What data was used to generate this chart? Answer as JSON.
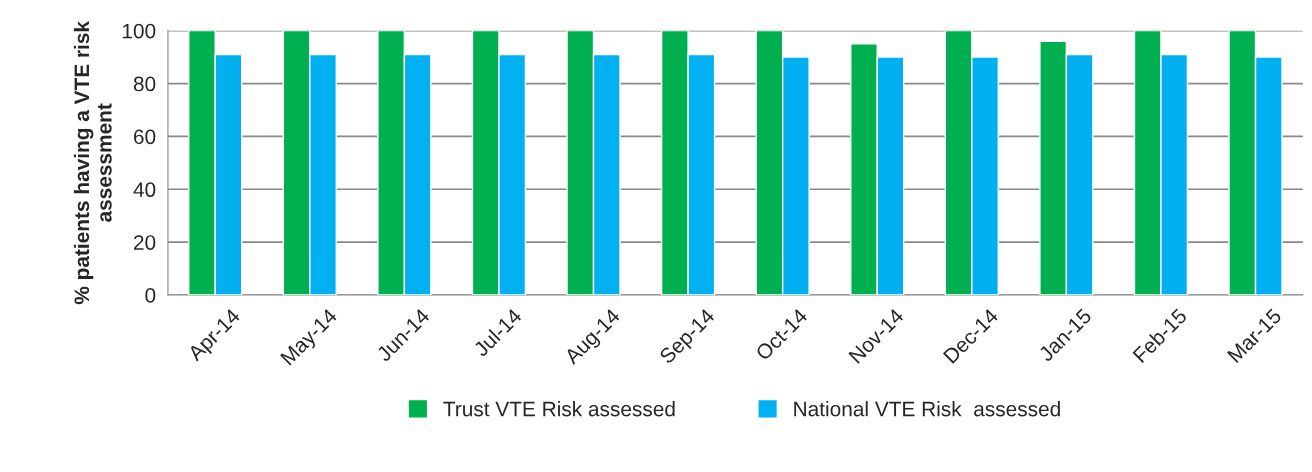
{
  "chart_data": {
    "type": "bar",
    "ylabel": "% patients having a VTE risk\nassessment",
    "categories": [
      "Apr-14",
      "May-14",
      "Jun-14",
      "Jul-14",
      "Aug-14",
      "Sep-14",
      "Oct-14",
      "Nov-14",
      "Dec-14",
      "Jan-15",
      "Feb-15",
      "Mar-15"
    ],
    "series": [
      {
        "name": "Trust VTE Risk assessed",
        "color": "#00b050",
        "values": [
          100,
          100,
          100,
          100,
          100,
          100,
          100,
          95,
          100,
          96,
          100,
          100
        ]
      },
      {
        "name": "National VTE Risk  assessed",
        "color": "#00b0f0",
        "values": [
          91,
          91,
          91,
          91,
          91,
          91,
          90,
          90,
          90,
          91,
          91,
          90
        ]
      }
    ],
    "ylim": [
      0,
      100
    ],
    "yticks": [
      0,
      20,
      40,
      60,
      80,
      100
    ],
    "grid": "y",
    "legend": "bottom"
  }
}
